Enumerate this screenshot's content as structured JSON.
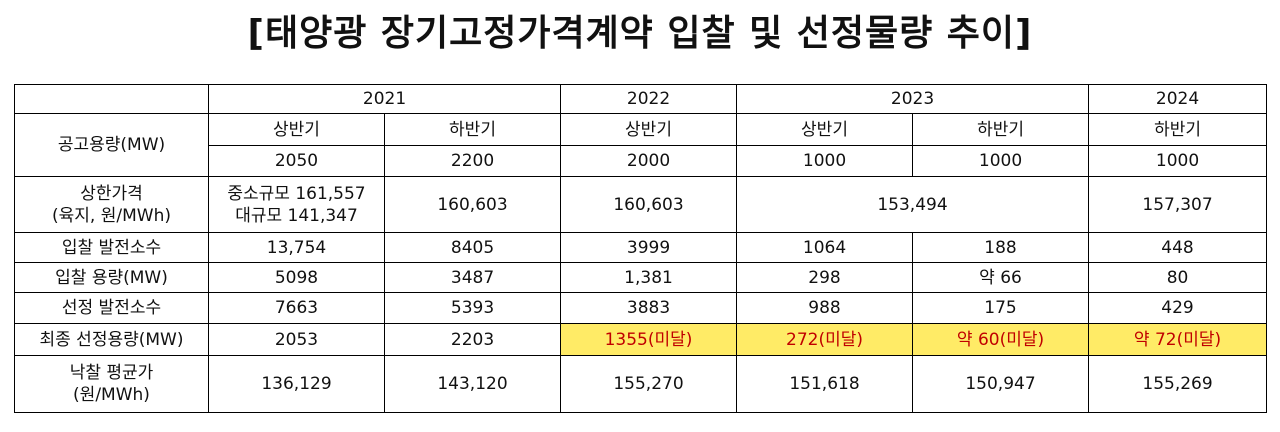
{
  "title": "[태양광 장기고정가격계약 입찰 및 선정물량 추이]",
  "years": [
    "2021",
    "2022",
    "2023",
    "2024"
  ],
  "periods": [
    "상반기",
    "하반기",
    "상반기",
    "상반기",
    "하반기",
    "하반기"
  ],
  "rows": {
    "capacity": {
      "label": "공고용량(MW)",
      "values": [
        "2050",
        "2200",
        "2000",
        "1000",
        "1000",
        "1000"
      ]
    },
    "price_cap": {
      "label_1": "상한가격",
      "label_2": "(육지, 원/MWh)",
      "first_1": "중소규모 161,557",
      "first_2": "대규모 141,347",
      "v2": "160,603",
      "v3": "160,603",
      "v2023": "153,494",
      "v2024": "157,307"
    },
    "bid_count": {
      "label": "입찰 발전소수",
      "values": [
        "13,754",
        "8405",
        "3999",
        "1064",
        "188",
        "448"
      ]
    },
    "bid_capacity": {
      "label": "입찰 용량(MW)",
      "values": [
        "5098",
        "3487",
        "1,381",
        "298",
        "약 66",
        "80"
      ]
    },
    "selected_count": {
      "label": "선정 발전소수",
      "values": [
        "7663",
        "5393",
        "3883",
        "988",
        "175",
        "429"
      ]
    },
    "final_capacity": {
      "label": "최종 선정용량(MW)",
      "values": [
        "2053",
        "2203",
        "1355(미달)",
        "272(미달)",
        "약 60(미달)",
        "약 72(미달)"
      ]
    },
    "avg_price": {
      "label_1": "낙찰 평균가",
      "label_2": "(원/MWh)",
      "values": [
        "136,129",
        "143,120",
        "155,270",
        "151,618",
        "150,947",
        "155,269"
      ]
    }
  },
  "colors": {
    "highlight_bg": "#ffeb66",
    "highlight_text": "#c00000"
  }
}
